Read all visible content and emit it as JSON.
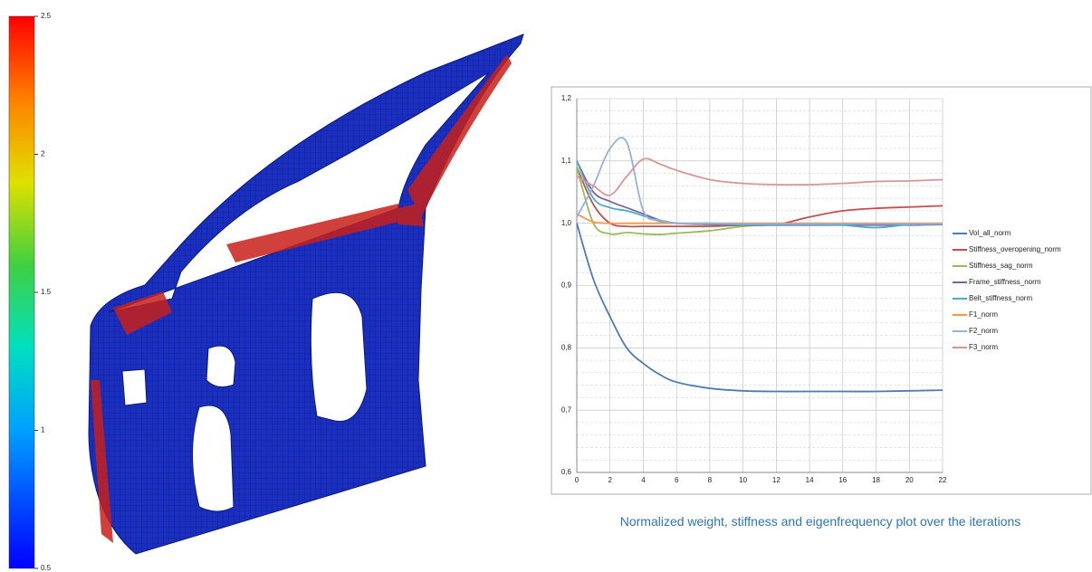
{
  "colorbar": {
    "lim": [
      0.5,
      2.5
    ],
    "ticks": [
      0.5,
      1,
      1.5,
      2,
      2.5
    ]
  },
  "chart_data": {
    "type": "line",
    "x": [
      0,
      1,
      2,
      3,
      4,
      5,
      6,
      8,
      10,
      12,
      14,
      16,
      18,
      20,
      22
    ],
    "xlim": [
      0,
      22
    ],
    "xticks": [
      0,
      2,
      4,
      6,
      8,
      10,
      12,
      14,
      16,
      18,
      20,
      22
    ],
    "ylim": [
      0.6,
      1.2
    ],
    "yticks": [
      {
        "value": 0.6,
        "label": "0,6"
      },
      {
        "value": 0.7,
        "label": "0,7"
      },
      {
        "value": 0.8,
        "label": "0,8"
      },
      {
        "value": 0.9,
        "label": "0,9"
      },
      {
        "value": 1.0,
        "label": "1,0"
      },
      {
        "value": 1.1,
        "label": "1,1"
      },
      {
        "value": 1.2,
        "label": "1,2"
      }
    ],
    "grid": true,
    "legend": "right",
    "series": [
      {
        "name": "Vol_all_norm",
        "color": "#4f7bb5",
        "values": [
          1.0,
          0.91,
          0.85,
          0.8,
          0.775,
          0.757,
          0.745,
          0.735,
          0.731,
          0.73,
          0.73,
          0.73,
          0.73,
          0.731,
          0.732
        ]
      },
      {
        "name": "Stiffness_overopening_norm",
        "color": "#c0504d",
        "values": [
          1.09,
          1.03,
          1.0,
          0.995,
          0.995,
          0.995,
          0.995,
          0.995,
          0.997,
          0.998,
          1.01,
          1.02,
          1.024,
          1.026,
          1.028
        ]
      },
      {
        "name": "Stiffness_sag_norm",
        "color": "#9bbb59",
        "values": [
          1.09,
          1.0,
          0.983,
          0.985,
          0.983,
          0.982,
          0.984,
          0.988,
          0.995,
          0.998,
          0.998,
          0.998,
          0.998,
          0.999,
          1.0
        ]
      },
      {
        "name": "Frame_stiffness_norm",
        "color": "#8064a2",
        "values": [
          1.1,
          1.05,
          1.035,
          1.025,
          1.015,
          1.005,
          1.0,
          0.998,
          0.997,
          0.997,
          0.997,
          0.997,
          0.997,
          0.997,
          0.998
        ]
      },
      {
        "name": "Belt_stiffness_norm",
        "color": "#4bacc6",
        "values": [
          1.1,
          1.04,
          1.025,
          1.02,
          1.012,
          1.003,
          1.0,
          0.999,
          0.998,
          0.998,
          0.998,
          0.997,
          0.993,
          0.998,
          0.999
        ]
      },
      {
        "name": "F1_norm",
        "color": "#f79646",
        "values": [
          1.015,
          1.002,
          1.0,
          1.0,
          1.0,
          1.0,
          1.0,
          1.0,
          1.0,
          1.0,
          1.0,
          1.0,
          1.0,
          1.0,
          1.0
        ]
      },
      {
        "name": "F2_norm",
        "color": "#95b3d7",
        "values": [
          1.01,
          1.06,
          1.12,
          1.13,
          1.02,
          1.005,
          1.0,
          1.0,
          0.999,
          0.999,
          0.999,
          0.999,
          0.999,
          0.999,
          0.999
        ]
      },
      {
        "name": "F3_norm",
        "color": "#d99694",
        "values": [
          1.075,
          1.06,
          1.045,
          1.075,
          1.103,
          1.095,
          1.085,
          1.07,
          1.064,
          1.062,
          1.062,
          1.064,
          1.067,
          1.068,
          1.07
        ]
      }
    ]
  },
  "caption": "Normalized weight, stiffness and eigenfrequency plot over the iterations"
}
